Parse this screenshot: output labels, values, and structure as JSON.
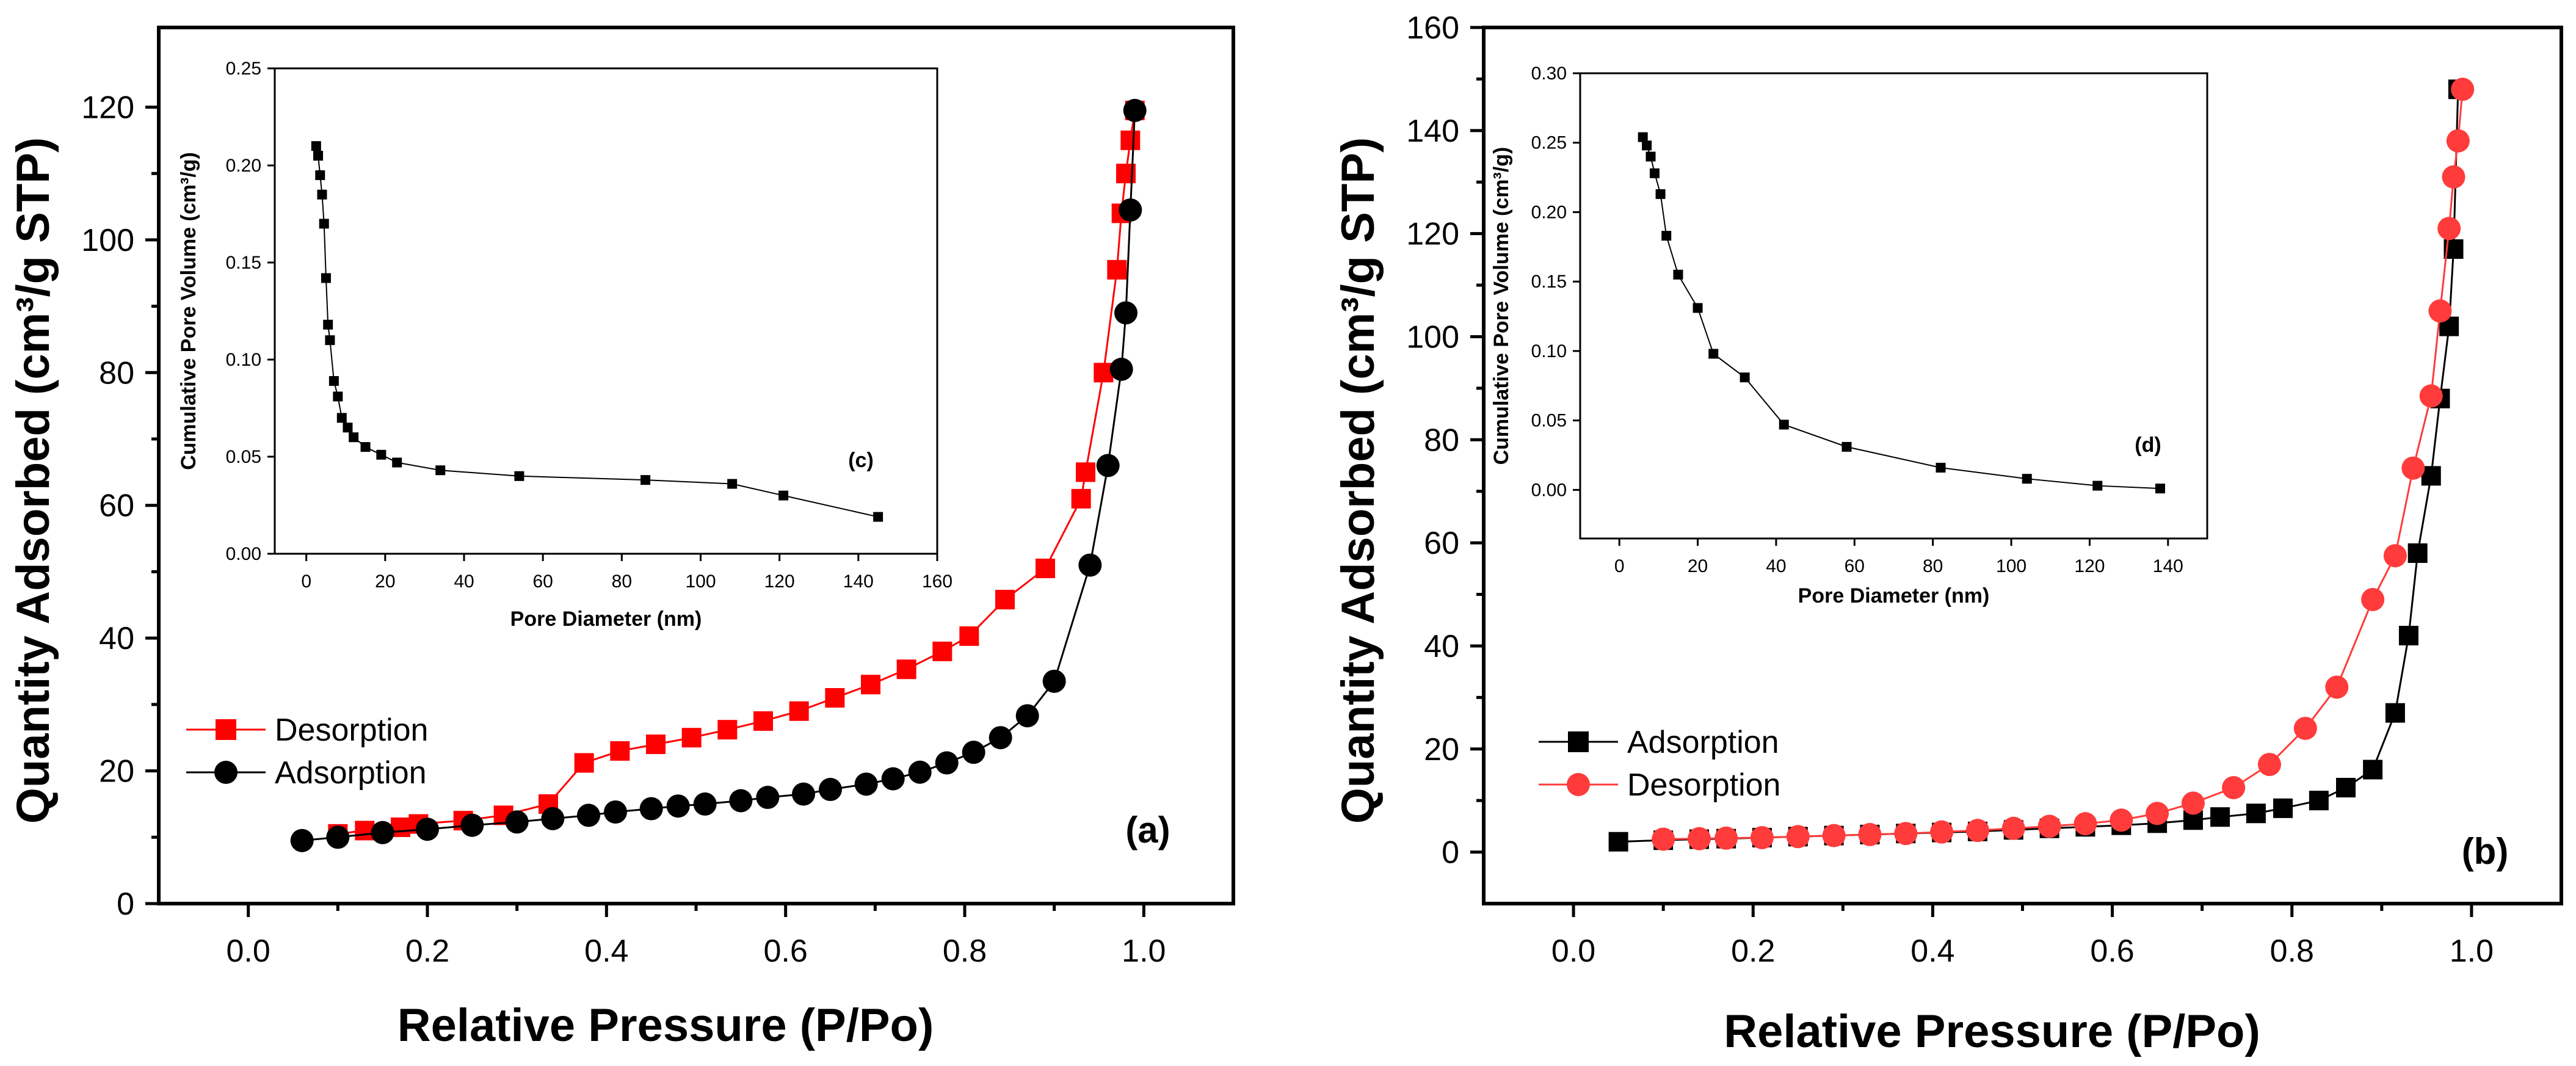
{
  "colors": {
    "desorption_a": "#ff0000",
    "adsorption_a": "#000000",
    "adsorption_b": "#000000",
    "desorption_b": "#ff3b3b",
    "axis": "#000000",
    "inset_marker": "#000000"
  },
  "chart_data": [
    {
      "id": "a",
      "type": "line",
      "panel_label": "(a)",
      "xlabel": "Relative Pressure (P/Po)",
      "ylabel": "Quantity Adsorbed (cm³/g STP)",
      "xlim": [
        -0.1,
        1.1
      ],
      "ylim": [
        0,
        132
      ],
      "xticks": [
        "0.0",
        "0.2",
        "0.4",
        "0.6",
        "0.8",
        "1.0"
      ],
      "yticks": [
        "0",
        "20",
        "40",
        "60",
        "80",
        "100",
        "120"
      ],
      "legend": [
        "Desorption",
        "Adsorption"
      ],
      "legend_position": "lower-left",
      "series": [
        {
          "name": "Desorption",
          "marker": "square",
          "color": "#ff0000",
          "x": [
            0.1,
            0.13,
            0.17,
            0.19,
            0.24,
            0.285,
            0.335,
            0.375,
            0.415,
            0.455,
            0.495,
            0.535,
            0.575,
            0.615,
            0.655,
            0.695,
            0.735,
            0.775,
            0.805,
            0.845,
            0.89,
            0.93,
            0.935,
            0.955,
            0.97,
            0.975,
            0.98,
            0.985,
            0.99
          ],
          "y": [
            10.5,
            11.0,
            11.5,
            12.0,
            12.5,
            13.3,
            15.0,
            21.2,
            23.0,
            24.0,
            25.0,
            26.2,
            27.5,
            29.0,
            31.0,
            33.0,
            35.3,
            38.0,
            40.3,
            45.8,
            50.5,
            61.0,
            65.0,
            80.0,
            95.5,
            104.0,
            110.0,
            115.0,
            119.5
          ]
        },
        {
          "name": "Adsorption",
          "marker": "circle",
          "color": "#000000",
          "x": [
            0.06,
            0.1,
            0.15,
            0.2,
            0.25,
            0.3,
            0.34,
            0.38,
            0.41,
            0.45,
            0.48,
            0.51,
            0.55,
            0.58,
            0.62,
            0.65,
            0.69,
            0.72,
            0.75,
            0.78,
            0.81,
            0.84,
            0.87,
            0.9,
            0.94,
            0.96,
            0.975,
            0.98,
            0.985,
            0.99
          ],
          "y": [
            9.5,
            10.0,
            10.7,
            11.2,
            11.8,
            12.3,
            12.8,
            13.3,
            13.8,
            14.3,
            14.7,
            15.0,
            15.5,
            16.0,
            16.5,
            17.2,
            18.0,
            18.8,
            19.8,
            21.2,
            22.8,
            25.0,
            28.3,
            33.5,
            51.0,
            66.0,
            80.5,
            89.0,
            104.5,
            119.5
          ]
        }
      ]
    },
    {
      "id": "b",
      "type": "line",
      "panel_label": "(b)",
      "xlabel": "Relative Pressure (P/Po)",
      "ylabel": "Quantity Adsorbed (cm³/g STP)",
      "xlim": [
        -0.1,
        1.1
      ],
      "ylim": [
        -10,
        160
      ],
      "xticks": [
        "0.0",
        "0.2",
        "0.4",
        "0.6",
        "0.8",
        "1.0"
      ],
      "yticks": [
        "0",
        "20",
        "40",
        "60",
        "80",
        "100",
        "120",
        "140",
        "160"
      ],
      "legend": [
        "Adsorption",
        "Desorption"
      ],
      "legend_position": "lower-left",
      "series": [
        {
          "name": "Adsorption",
          "marker": "square",
          "color": "#000000",
          "x": [
            0.05,
            0.1,
            0.14,
            0.17,
            0.21,
            0.25,
            0.29,
            0.33,
            0.37,
            0.41,
            0.45,
            0.49,
            0.53,
            0.57,
            0.61,
            0.65,
            0.69,
            0.72,
            0.76,
            0.79,
            0.83,
            0.86,
            0.89,
            0.915,
            0.93,
            0.94,
            0.955,
            0.965,
            0.975,
            0.98,
            0.985
          ],
          "y": [
            2.0,
            2.3,
            2.5,
            2.6,
            2.8,
            3.0,
            3.2,
            3.4,
            3.6,
            3.8,
            4.0,
            4.3,
            4.6,
            4.9,
            5.2,
            5.6,
            6.2,
            6.8,
            7.5,
            8.5,
            10.0,
            12.5,
            16.0,
            27.0,
            42.0,
            58.0,
            73.0,
            88.0,
            102.0,
            117.0,
            148.0
          ]
        },
        {
          "name": "Desorption",
          "marker": "circle",
          "color": "#ff3b3b",
          "x": [
            0.1,
            0.14,
            0.17,
            0.21,
            0.25,
            0.29,
            0.33,
            0.37,
            0.41,
            0.45,
            0.49,
            0.53,
            0.57,
            0.61,
            0.65,
            0.69,
            0.735,
            0.775,
            0.815,
            0.85,
            0.89,
            0.915,
            0.935,
            0.955,
            0.965,
            0.975,
            0.98,
            0.985,
            0.99
          ],
          "y": [
            2.5,
            2.6,
            2.7,
            2.8,
            3.0,
            3.2,
            3.4,
            3.6,
            3.9,
            4.2,
            4.6,
            5.0,
            5.5,
            6.2,
            7.5,
            9.5,
            12.5,
            17.0,
            24.0,
            32.0,
            49.0,
            57.5,
            74.5,
            88.5,
            105.0,
            121.0,
            131.0,
            138.0,
            148.0
          ]
        }
      ]
    },
    {
      "id": "c",
      "type": "line",
      "panel_label": "(c)",
      "xlabel": "Pore Diameter (nm)",
      "ylabel": "Cumulative Pore Volume (cm³/g)",
      "xlim": [
        -8,
        160
      ],
      "ylim": [
        0,
        0.25
      ],
      "xticks": [
        "0",
        "20",
        "40",
        "60",
        "80",
        "100",
        "120",
        "140",
        "160"
      ],
      "yticks": [
        "0.00",
        "0.05",
        "0.10",
        "0.15",
        "0.20",
        "0.25"
      ],
      "series": [
        {
          "name": "Cumulative Pore Volume",
          "marker": "square",
          "color": "#000000",
          "x": [
            2.5,
            3.0,
            3.5,
            4.0,
            4.5,
            5.0,
            5.5,
            6.0,
            7.0,
            8.0,
            9.0,
            10.5,
            12.0,
            15.0,
            19.0,
            23.0,
            34.0,
            54.0,
            86.0,
            108.0,
            121.0,
            145.0
          ],
          "y": [
            0.21,
            0.205,
            0.195,
            0.185,
            0.17,
            0.142,
            0.118,
            0.11,
            0.089,
            0.081,
            0.07,
            0.065,
            0.06,
            0.055,
            0.051,
            0.047,
            0.043,
            0.04,
            0.038,
            0.036,
            0.03,
            0.019
          ]
        }
      ]
    },
    {
      "id": "d",
      "type": "line",
      "panel_label": "(d)",
      "xlabel": "Pore Diameter (nm)",
      "ylabel": "Cumulative Pore Volume (cm³/g)",
      "xlim": [
        -10,
        150
      ],
      "ylim": [
        -0.035,
        0.3
      ],
      "xticks": [
        "0",
        "20",
        "40",
        "60",
        "80",
        "100",
        "120",
        "140"
      ],
      "yticks": [
        "0.00",
        "0.05",
        "0.10",
        "0.15",
        "0.20",
        "0.25",
        "0.30"
      ],
      "series": [
        {
          "name": "Cumulative Pore Volume",
          "marker": "square",
          "color": "#000000",
          "x": [
            6.0,
            7.0,
            8.0,
            9.0,
            10.5,
            12.0,
            15.0,
            20.0,
            24.0,
            32.0,
            42.0,
            58.0,
            82.0,
            104.0,
            122.0,
            138.0
          ],
          "y": [
            0.254,
            0.248,
            0.24,
            0.228,
            0.213,
            0.183,
            0.155,
            0.131,
            0.098,
            0.081,
            0.047,
            0.031,
            0.016,
            0.008,
            0.003,
            0.001
          ]
        }
      ]
    }
  ]
}
